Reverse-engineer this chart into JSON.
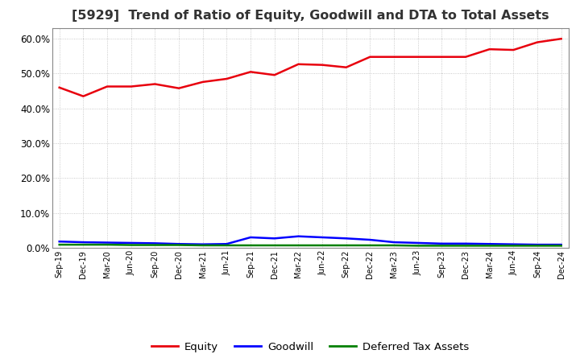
{
  "title": "[5929]  Trend of Ratio of Equity, Goodwill and DTA to Total Assets",
  "x_labels": [
    "Sep-19",
    "Dec-19",
    "Mar-20",
    "Jun-20",
    "Sep-20",
    "Dec-20",
    "Mar-21",
    "Jun-21",
    "Sep-21",
    "Dec-21",
    "Mar-22",
    "Jun-22",
    "Sep-22",
    "Dec-22",
    "Mar-23",
    "Jun-23",
    "Sep-23",
    "Dec-23",
    "Mar-24",
    "Jun-24",
    "Sep-24",
    "Dec-24"
  ],
  "equity": [
    0.46,
    0.435,
    0.463,
    0.463,
    0.47,
    0.458,
    0.476,
    0.485,
    0.505,
    0.496,
    0.527,
    0.525,
    0.518,
    0.548,
    0.548,
    0.548,
    0.548,
    0.548,
    0.57,
    0.568,
    0.59,
    0.6
  ],
  "goodwill": [
    0.018,
    0.016,
    0.015,
    0.014,
    0.013,
    0.011,
    0.01,
    0.011,
    0.03,
    0.027,
    0.033,
    0.03,
    0.027,
    0.023,
    0.016,
    0.014,
    0.012,
    0.012,
    0.011,
    0.01,
    0.009,
    0.009
  ],
  "dta": [
    0.009,
    0.009,
    0.009,
    0.008,
    0.008,
    0.008,
    0.007,
    0.007,
    0.007,
    0.007,
    0.007,
    0.007,
    0.007,
    0.007,
    0.007,
    0.006,
    0.006,
    0.006,
    0.006,
    0.006,
    0.006,
    0.006
  ],
  "equity_color": "#e8000d",
  "goodwill_color": "#0000ff",
  "dta_color": "#008000",
  "ylim": [
    0.0,
    0.63
  ],
  "yticks": [
    0.0,
    0.1,
    0.2,
    0.3,
    0.4,
    0.5,
    0.6
  ],
  "background_color": "#ffffff",
  "grid_color": "#bbbbbb",
  "title_fontsize": 11.5,
  "legend_labels": [
    "Equity",
    "Goodwill",
    "Deferred Tax Assets"
  ]
}
